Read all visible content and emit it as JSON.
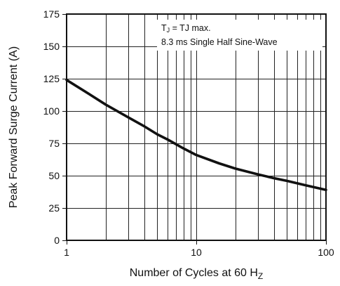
{
  "chart_data": {
    "type": "line",
    "title": "",
    "xlabel": "Number of Cycles at 60 H",
    "xlabel_sub": "Z",
    "ylabel": "Peak Forward Surge Current (A)",
    "xscale": "log",
    "xlim": [
      1,
      100
    ],
    "ylim": [
      0,
      175
    ],
    "grid": true,
    "x_ticks": [
      1,
      10,
      100
    ],
    "x_tick_labels": [
      "1",
      "10",
      "100"
    ],
    "y_ticks": [
      0,
      25,
      50,
      75,
      100,
      125,
      150,
      175
    ],
    "y_tick_labels": [
      "0",
      "25",
      "50",
      "75",
      "100",
      "125",
      "150",
      "175"
    ],
    "annotation": {
      "line1_prefix": "T",
      "line1_sub": "J",
      "line1_rest": " = TJ max.",
      "line2": "8.3 ms Single Half Sine-Wave",
      "placement": "top-right"
    },
    "series": [
      {
        "x": [
          1,
          1.5,
          2,
          3,
          4,
          5,
          6,
          8,
          10,
          15,
          20,
          30,
          40,
          50,
          70,
          100
        ],
        "values": [
          124,
          113,
          105,
          95,
          88,
          82,
          78,
          71,
          66,
          59.5,
          55.5,
          51,
          48,
          46,
          42.5,
          39
        ]
      }
    ]
  }
}
